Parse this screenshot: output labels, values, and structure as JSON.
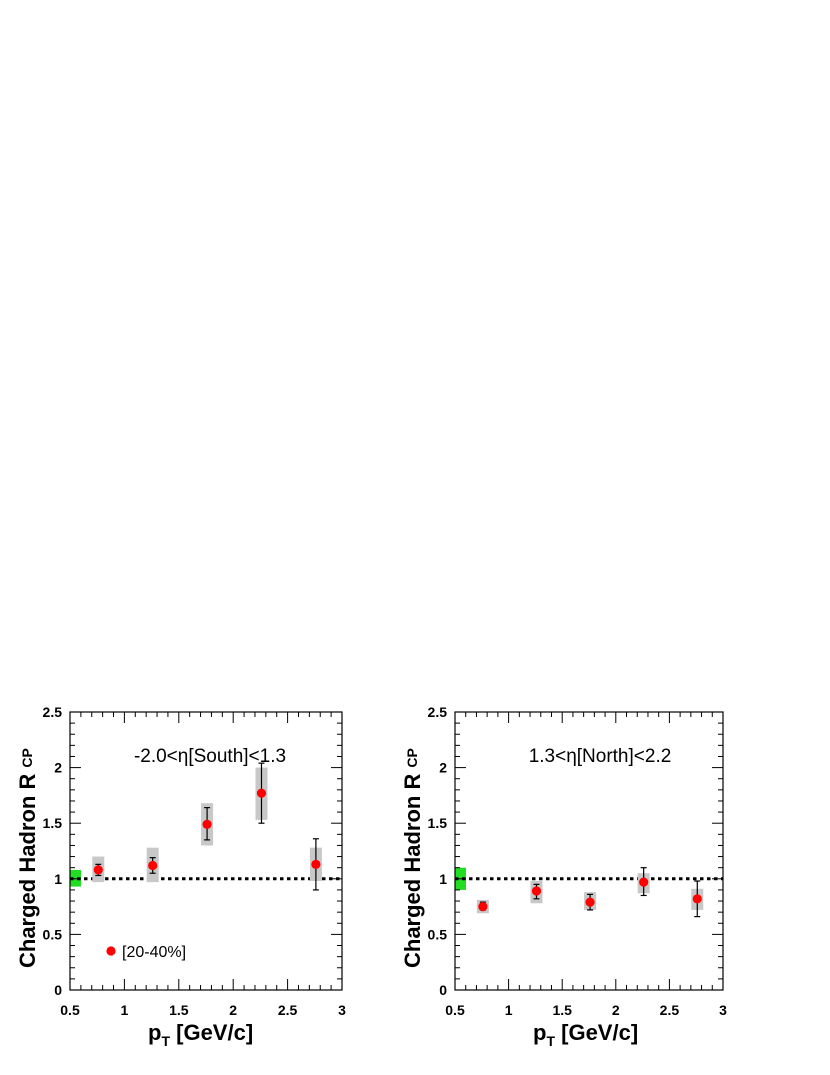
{
  "chart_data": [
    {
      "type": "scatter",
      "annotation": "-2.0<η[South]<1.3",
      "xlabel": "p",
      "xlabel_sub": "T",
      "xlabel_unit": " [GeV/c]",
      "ylabel": "Charged Hadron R",
      "ylabel_sub": "CP",
      "xlim": [
        0.5,
        3
      ],
      "ylim": [
        0,
        2.5
      ],
      "xticks": [
        "0.5",
        "1",
        "1.5",
        "2",
        "2.5",
        "3"
      ],
      "yticks": [
        "0",
        "0.5",
        "1",
        "1.5",
        "2",
        "2.5"
      ],
      "reference_line": 1,
      "normalization_band": [
        0.93,
        1.08
      ],
      "legend": "[20-40%]",
      "series": [
        {
          "name": "[20-40%]",
          "color": "#ff0000",
          "points": [
            {
              "x": 0.76,
              "y": 1.08,
              "stat": [
                1.03,
                1.13
              ],
              "sys": [
                0.97,
                1.2
              ]
            },
            {
              "x": 1.26,
              "y": 1.12,
              "stat": [
                1.05,
                1.19
              ],
              "sys": [
                0.97,
                1.28
              ]
            },
            {
              "x": 1.76,
              "y": 1.49,
              "stat": [
                1.35,
                1.64
              ],
              "sys": [
                1.3,
                1.68
              ]
            },
            {
              "x": 2.26,
              "y": 1.77,
              "stat": [
                1.5,
                2.04
              ],
              "sys": [
                1.53,
                2.0
              ]
            },
            {
              "x": 2.76,
              "y": 1.13,
              "stat": [
                0.9,
                1.36
              ],
              "sys": [
                0.98,
                1.28
              ]
            }
          ]
        }
      ]
    },
    {
      "type": "scatter",
      "annotation": "1.3<η[North]<2.2",
      "xlabel": "p",
      "xlabel_sub": "T",
      "xlabel_unit": " [GeV/c]",
      "ylabel": "Charged Hadron R",
      "ylabel_sub": "CP",
      "xlim": [
        0.5,
        3
      ],
      "ylim": [
        0,
        2.5
      ],
      "xticks": [
        "0.5",
        "1",
        "1.5",
        "2",
        "2.5",
        "3"
      ],
      "yticks": [
        "0",
        "0.5",
        "1",
        "1.5",
        "2",
        "2.5"
      ],
      "reference_line": 1,
      "normalization_band": [
        0.9,
        1.1
      ],
      "series": [
        {
          "name": "[20-40%]",
          "color": "#ff0000",
          "points": [
            {
              "x": 0.76,
              "y": 0.75,
              "stat": [
                0.72,
                0.79
              ],
              "sys": [
                0.69,
                0.81
              ]
            },
            {
              "x": 1.26,
              "y": 0.89,
              "stat": [
                0.82,
                0.95
              ],
              "sys": [
                0.78,
                0.98
              ]
            },
            {
              "x": 1.76,
              "y": 0.79,
              "stat": [
                0.72,
                0.86
              ],
              "sys": [
                0.72,
                0.88
              ]
            },
            {
              "x": 2.26,
              "y": 0.97,
              "stat": [
                0.85,
                1.1
              ],
              "sys": [
                0.87,
                1.05
              ]
            },
            {
              "x": 2.76,
              "y": 0.82,
              "stat": [
                0.66,
                0.98
              ],
              "sys": [
                0.72,
                0.91
              ]
            }
          ]
        }
      ]
    }
  ]
}
